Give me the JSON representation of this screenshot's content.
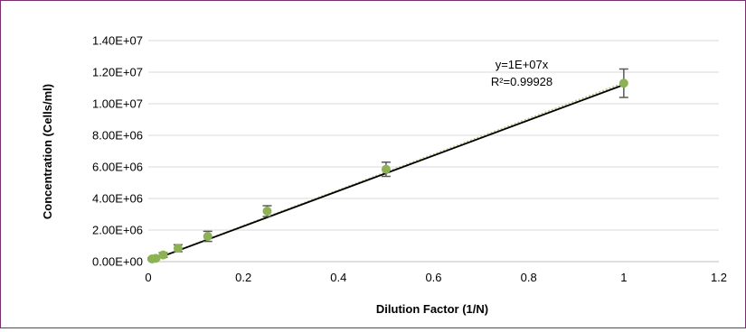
{
  "chart_data": {
    "type": "scatter",
    "xlabel": "Dilution Factor (1/N)",
    "ylabel": "Concentration (Cells/ml)",
    "xlim": [
      0,
      1.2
    ],
    "ylim": [
      0,
      14000000
    ],
    "x_ticks": [
      0,
      0.2,
      0.4,
      0.6,
      0.8,
      1,
      1.2
    ],
    "x_tick_labels": [
      "0",
      "0.2",
      "0.4",
      "0.6",
      "0.8",
      "1",
      "1.2"
    ],
    "y_ticks": [
      0,
      2000000,
      4000000,
      6000000,
      8000000,
      10000000,
      12000000,
      14000000
    ],
    "y_tick_labels": [
      "0.00E+00",
      "2.00E+06",
      "4.00E+06",
      "6.00E+06",
      "8.00E+06",
      "1.00E+07",
      "1.20E+07",
      "1.40E+07"
    ],
    "grid": "horizontal",
    "series": [
      {
        "color": "#8db255",
        "points": [
          {
            "x": 0.0078,
            "y": 170000,
            "err": 60000
          },
          {
            "x": 0.0156,
            "y": 210000,
            "err": 80000
          },
          {
            "x": 0.03125,
            "y": 420000,
            "err": 150000
          },
          {
            "x": 0.0625,
            "y": 850000,
            "err": 220000
          },
          {
            "x": 0.125,
            "y": 1600000,
            "err": 320000
          },
          {
            "x": 0.25,
            "y": 3200000,
            "err": 340000
          },
          {
            "x": 0.5,
            "y": 5850000,
            "err": 450000
          },
          {
            "x": 1.0,
            "y": 11300000,
            "err": 900000
          }
        ]
      }
    ],
    "trendline": {
      "slope": 11200000,
      "x_range": [
        0.008,
        1.0
      ],
      "color": "#000000",
      "equation": "y=1E+07x",
      "r_squared": "R²=0.99928"
    },
    "dotted_fit_color": "#b5c98a"
  }
}
